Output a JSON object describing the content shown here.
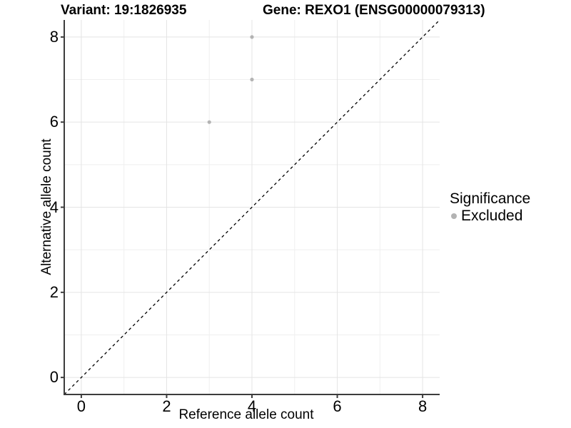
{
  "header": {
    "variant_title": "Variant: 19:1826935",
    "gene_title": "Gene: REXO1 (ENSG00000079313)"
  },
  "chart_data": {
    "type": "scatter",
    "xlabel": "Reference allele count",
    "ylabel": "Alternative allele count",
    "xlim": [
      -0.4,
      8.4
    ],
    "ylim": [
      -0.4,
      8.4
    ],
    "x_ticks": [
      0,
      2,
      4,
      6,
      8
    ],
    "y_ticks": [
      0,
      2,
      4,
      6,
      8
    ],
    "x_minor_ticks": [
      1,
      3,
      5,
      7
    ],
    "y_minor_ticks": [
      1,
      3,
      5,
      7
    ],
    "grid": "major and minor gridlines, white panel background",
    "series": [
      {
        "name": "Excluded",
        "color": "#b3b3b3",
        "points": [
          [
            4,
            8
          ],
          [
            4,
            7
          ],
          [
            3,
            6
          ]
        ]
      }
    ],
    "reference_line": {
      "equation": "y = x",
      "style": "dashed",
      "color": "#000000",
      "from": [
        -0.4,
        -0.4
      ],
      "to": [
        8.4,
        8.4
      ]
    }
  },
  "legend": {
    "title": "Significance",
    "items": [
      {
        "label": "Excluded",
        "color": "#b3b3b3"
      }
    ],
    "position": "right"
  },
  "colors": {
    "background": "#ffffff",
    "grid_major": "#e4e4e4",
    "grid_minor": "#efefef",
    "axis_line": "#3c3c3c",
    "point": "#b3b3b3",
    "text": "#000000"
  }
}
